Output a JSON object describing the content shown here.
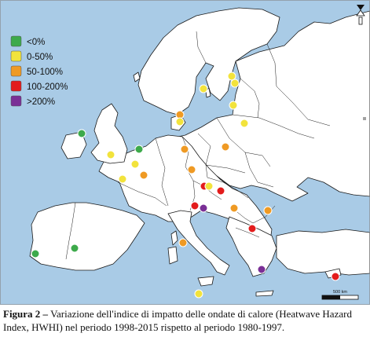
{
  "legend": [
    {
      "label": "<0%",
      "color": "#3daa4b"
    },
    {
      "label": "0-50%",
      "color": "#f2e33c"
    },
    {
      "label": "50-100%",
      "color": "#ef9a24"
    },
    {
      "label": "100-200%",
      "color": "#e31c1c"
    },
    {
      "label": ">200%",
      "color": "#7a2f96"
    }
  ],
  "scale_bar": {
    "label": "500 km"
  },
  "caption": {
    "title": "Figura 2 –",
    "text": "Variazione dell'indice di impatto delle ondate di calore (Heatwave Hazard Index, HWHI) nel periodo 1998-2015 rispetto al periodo 1980-1997."
  },
  "colors": {
    "sea": "#a9cbe6",
    "land": "#ffffff",
    "border": "#1a1a1a",
    "marker_outline": "#ffffff"
  }
}
